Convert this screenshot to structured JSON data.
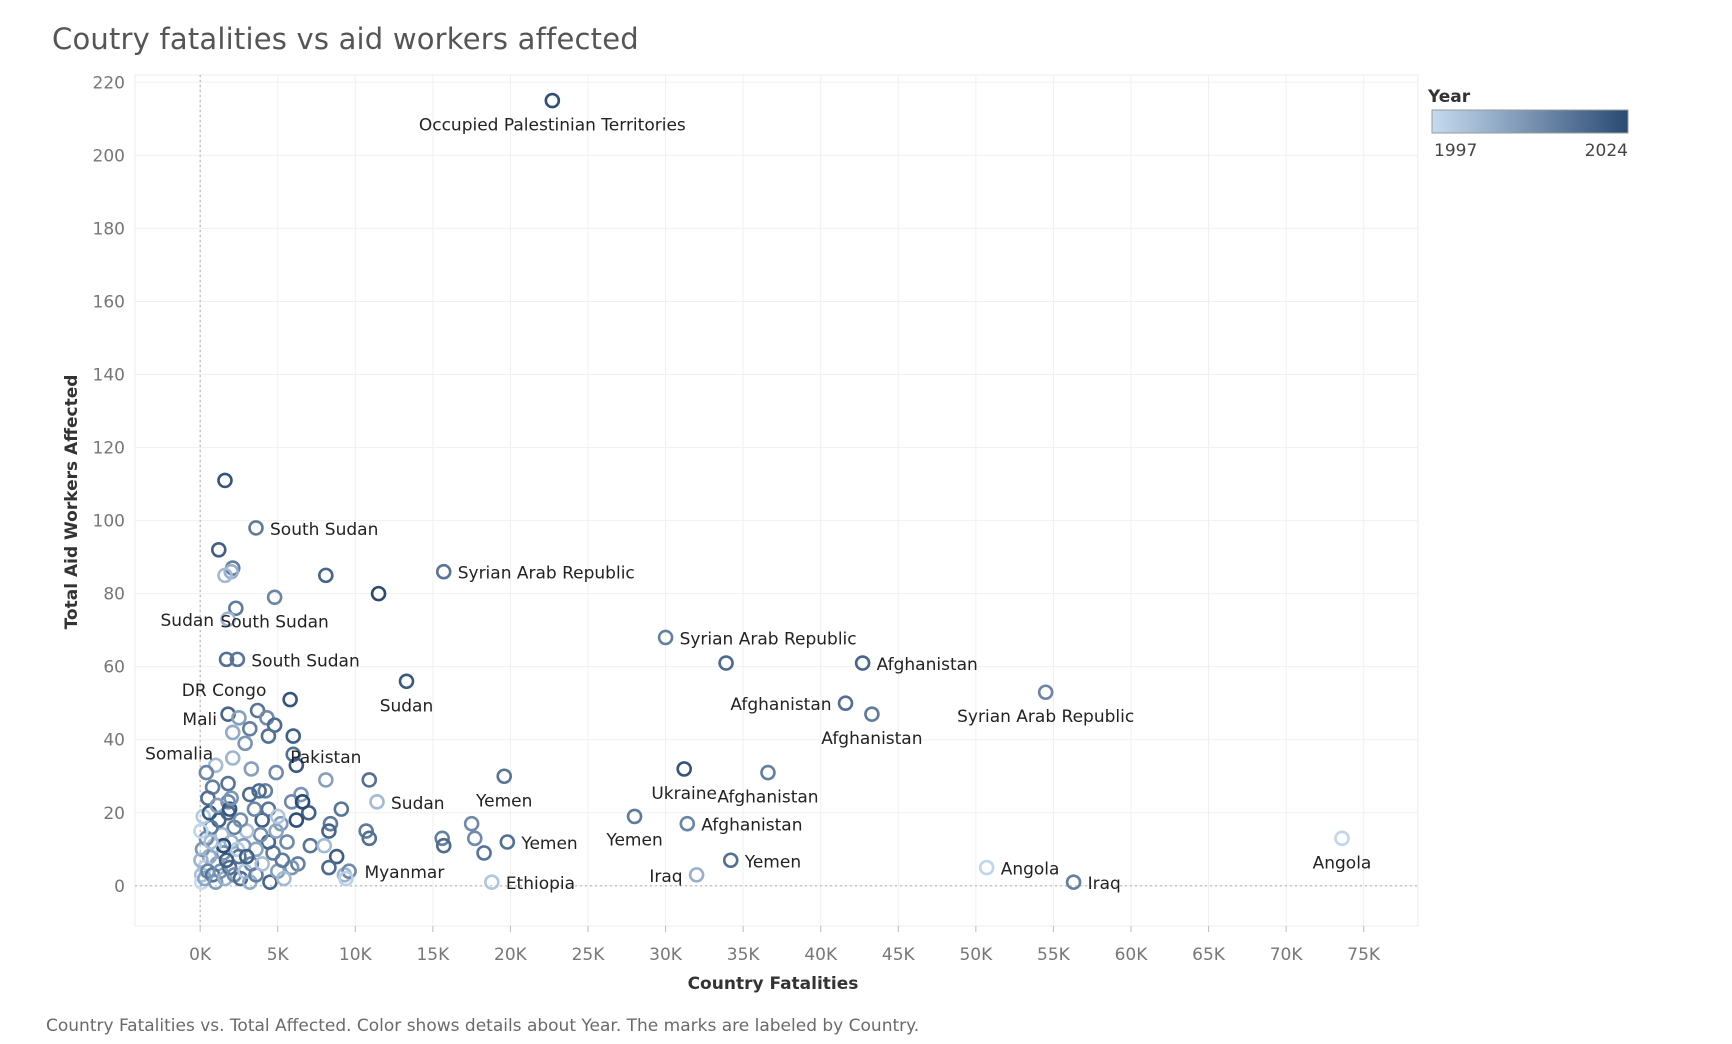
{
  "title": "Coutry fatalities vs aid workers affected",
  "caption": "Country Fatalities vs. Total Affected.  Color shows details about Year.  The marks are labeled by Country.",
  "legend": {
    "title": "Year",
    "min_label": "1997",
    "max_label": "2024",
    "color_low": "#c6dbef",
    "color_high": "#2a4a73"
  },
  "chart_data": {
    "type": "scatter",
    "title": "Coutry fatalities vs aid workers affected",
    "xlabel": "Country Fatalities",
    "ylabel": "Total Aid Workers Affected",
    "xlim": [
      -4200,
      78500
    ],
    "ylim": [
      -11,
      222
    ],
    "xticks": [
      0,
      5000,
      10000,
      15000,
      20000,
      25000,
      30000,
      35000,
      40000,
      45000,
      50000,
      55000,
      60000,
      65000,
      70000,
      75000
    ],
    "xtick_labels": [
      "0K",
      "5K",
      "10K",
      "15K",
      "20K",
      "25K",
      "30K",
      "35K",
      "40K",
      "45K",
      "50K",
      "55K",
      "60K",
      "65K",
      "70K",
      "75K"
    ],
    "yticks": [
      0,
      20,
      40,
      60,
      80,
      100,
      120,
      140,
      160,
      180,
      200,
      220
    ],
    "ytick_labels": [
      "0",
      "20",
      "40",
      "60",
      "80",
      "100",
      "120",
      "140",
      "160",
      "180",
      "200",
      "220"
    ],
    "grid": true,
    "legend_position": "top-right",
    "color_by": "Year",
    "points": [
      {
        "x": 22700,
        "y": 215,
        "year": 2023,
        "label": "Occupied Palestinian Territories"
      },
      {
        "x": 1600,
        "y": 111,
        "year": 2022,
        "label": ""
      },
      {
        "x": 3600,
        "y": 98,
        "year": 2015,
        "label": "South Sudan"
      },
      {
        "x": 1200,
        "y": 92,
        "year": 2020,
        "label": ""
      },
      {
        "x": 2100,
        "y": 87,
        "year": 2014,
        "label": ""
      },
      {
        "x": 2000,
        "y": 86,
        "year": 2005,
        "label": ""
      },
      {
        "x": 1600,
        "y": 85,
        "year": 2003,
        "label": ""
      },
      {
        "x": 8100,
        "y": 85,
        "year": 2019,
        "label": ""
      },
      {
        "x": 15700,
        "y": 86,
        "year": 2016,
        "label": "Syrian Arab Republic"
      },
      {
        "x": 11500,
        "y": 80,
        "year": 2024,
        "label": ""
      },
      {
        "x": 4800,
        "y": 79,
        "year": 2013,
        "label": "South Sudan"
      },
      {
        "x": 2300,
        "y": 76,
        "year": 2015,
        "label": ""
      },
      {
        "x": 1800,
        "y": 73,
        "year": 2004,
        "label": "Sudan"
      },
      {
        "x": 30000,
        "y": 68,
        "year": 2014,
        "label": "Syrian Arab Republic"
      },
      {
        "x": 1700,
        "y": 62,
        "year": 2017,
        "label": ""
      },
      {
        "x": 2400,
        "y": 62,
        "year": 2016,
        "label": "South Sudan"
      },
      {
        "x": 33900,
        "y": 61,
        "year": 2018,
        "label": ""
      },
      {
        "x": 42700,
        "y": 61,
        "year": 2019,
        "label": "Afghanistan"
      },
      {
        "x": 13300,
        "y": 56,
        "year": 2021,
        "label": "Sudan"
      },
      {
        "x": 54500,
        "y": 53,
        "year": 2013,
        "label": "Syrian Arab Republic"
      },
      {
        "x": 5800,
        "y": 51,
        "year": 2022,
        "label": ""
      },
      {
        "x": 41600,
        "y": 50,
        "year": 2017,
        "label": "Afghanistan"
      },
      {
        "x": 43300,
        "y": 47,
        "year": 2015,
        "label": "Afghanistan"
      },
      {
        "x": 1800,
        "y": 47,
        "year": 2019,
        "label": "DR Congo"
      },
      {
        "x": 2500,
        "y": 46,
        "year": 2008,
        "label": "Mali"
      },
      {
        "x": 3700,
        "y": 48,
        "year": 2016,
        "label": ""
      },
      {
        "x": 4300,
        "y": 46,
        "year": 2012,
        "label": ""
      },
      {
        "x": 4800,
        "y": 44,
        "year": 2018,
        "label": ""
      },
      {
        "x": 2100,
        "y": 42,
        "year": 2006,
        "label": ""
      },
      {
        "x": 3200,
        "y": 43,
        "year": 2014,
        "label": ""
      },
      {
        "x": 4400,
        "y": 41,
        "year": 2017,
        "label": ""
      },
      {
        "x": 6000,
        "y": 41,
        "year": 2020,
        "label": ""
      },
      {
        "x": 2900,
        "y": 39,
        "year": 2010,
        "label": "Somalia"
      },
      {
        "x": 6000,
        "y": 36,
        "year": 2017,
        "label": ""
      },
      {
        "x": 2100,
        "y": 35,
        "year": 2004,
        "label": ""
      },
      {
        "x": 1000,
        "y": 33,
        "year": 2003,
        "label": ""
      },
      {
        "x": 3300,
        "y": 32,
        "year": 2008,
        "label": ""
      },
      {
        "x": 6200,
        "y": 33,
        "year": 2021,
        "label": ""
      },
      {
        "x": 400,
        "y": 31,
        "year": 2013,
        "label": ""
      },
      {
        "x": 4900,
        "y": 31,
        "year": 2012,
        "label": ""
      },
      {
        "x": 8100,
        "y": 29,
        "year": 2008,
        "label": "Pakistan"
      },
      {
        "x": 10900,
        "y": 29,
        "year": 2017,
        "label": ""
      },
      {
        "x": 19600,
        "y": 30,
        "year": 2016,
        "label": "Yemen"
      },
      {
        "x": 31200,
        "y": 32,
        "year": 2022,
        "label": "Ukraine"
      },
      {
        "x": 36600,
        "y": 31,
        "year": 2014,
        "label": "Afghanistan"
      },
      {
        "x": 800,
        "y": 27,
        "year": 2014,
        "label": ""
      },
      {
        "x": 1800,
        "y": 28,
        "year": 2016,
        "label": ""
      },
      {
        "x": 3200,
        "y": 25,
        "year": 2018,
        "label": ""
      },
      {
        "x": 4200,
        "y": 26,
        "year": 2014,
        "label": ""
      },
      {
        "x": 6500,
        "y": 25,
        "year": 2010,
        "label": ""
      },
      {
        "x": 11400,
        "y": 23,
        "year": 2003,
        "label": "Sudan"
      },
      {
        "x": 9100,
        "y": 21,
        "year": 2016,
        "label": ""
      },
      {
        "x": 500,
        "y": 24,
        "year": 2017,
        "label": ""
      },
      {
        "x": 1800,
        "y": 23,
        "year": 2012,
        "label": ""
      },
      {
        "x": 5900,
        "y": 23,
        "year": 2012,
        "label": ""
      },
      {
        "x": 7000,
        "y": 20,
        "year": 2020,
        "label": ""
      },
      {
        "x": 28000,
        "y": 19,
        "year": 2015,
        "label": "Yemen"
      },
      {
        "x": 31400,
        "y": 17,
        "year": 2013,
        "label": "Afghanistan"
      },
      {
        "x": 17500,
        "y": 17,
        "year": 2012,
        "label": ""
      },
      {
        "x": 8400,
        "y": 17,
        "year": 2015,
        "label": ""
      },
      {
        "x": 10700,
        "y": 15,
        "year": 2015,
        "label": ""
      },
      {
        "x": 8300,
        "y": 15,
        "year": 2019,
        "label": ""
      },
      {
        "x": 10900,
        "y": 13,
        "year": 2017,
        "label": ""
      },
      {
        "x": 15600,
        "y": 13,
        "year": 2014,
        "label": ""
      },
      {
        "x": 17700,
        "y": 13,
        "year": 2012,
        "label": ""
      },
      {
        "x": 15700,
        "y": 11,
        "year": 2018,
        "label": ""
      },
      {
        "x": 19800,
        "y": 12,
        "year": 2017,
        "label": "Yemen"
      },
      {
        "x": 18300,
        "y": 9,
        "year": 2016,
        "label": ""
      },
      {
        "x": 73600,
        "y": 13,
        "year": 1998,
        "label": "Angola"
      },
      {
        "x": 34200,
        "y": 7,
        "year": 2017,
        "label": "Yemen"
      },
      {
        "x": 32000,
        "y": 3,
        "year": 2005,
        "label": "Iraq"
      },
      {
        "x": 50700,
        "y": 5,
        "year": 1998,
        "label": "Angola"
      },
      {
        "x": 56300,
        "y": 1,
        "year": 2014,
        "label": "Iraq"
      },
      {
        "x": 18800,
        "y": 1,
        "year": 2001,
        "label": "Ethiopia"
      },
      {
        "x": 9300,
        "y": 3,
        "year": 2004,
        "label": "Myanmar"
      },
      {
        "x": 9600,
        "y": 4,
        "year": 2012,
        "label": ""
      },
      {
        "x": 8800,
        "y": 8,
        "year": 2020,
        "label": ""
      },
      {
        "x": 8300,
        "y": 5,
        "year": 2018,
        "label": ""
      },
      {
        "x": 7100,
        "y": 11,
        "year": 2016,
        "label": ""
      },
      {
        "x": 8000,
        "y": 11,
        "year": 2003,
        "label": ""
      },
      {
        "x": 6300,
        "y": 6,
        "year": 2014,
        "label": ""
      },
      {
        "x": 5900,
        "y": 5,
        "year": 2010,
        "label": ""
      },
      {
        "x": 5600,
        "y": 12,
        "year": 2012,
        "label": ""
      },
      {
        "x": 5200,
        "y": 17,
        "year": 2009,
        "label": ""
      },
      {
        "x": 4700,
        "y": 9,
        "year": 2015,
        "label": ""
      },
      {
        "x": 4400,
        "y": 12,
        "year": 2019,
        "label": ""
      },
      {
        "x": 4000,
        "y": 18,
        "year": 2020,
        "label": ""
      },
      {
        "x": 3900,
        "y": 14,
        "year": 2011,
        "label": ""
      },
      {
        "x": 3600,
        "y": 10,
        "year": 2007,
        "label": ""
      },
      {
        "x": 3300,
        "y": 6,
        "year": 2013,
        "label": ""
      },
      {
        "x": 3000,
        "y": 15,
        "year": 2002,
        "label": ""
      },
      {
        "x": 2800,
        "y": 11,
        "year": 2009,
        "label": ""
      },
      {
        "x": 2500,
        "y": 8,
        "year": 2016,
        "label": ""
      },
      {
        "x": 2200,
        "y": 16,
        "year": 2014,
        "label": ""
      },
      {
        "x": 2000,
        "y": 12,
        "year": 2005,
        "label": ""
      },
      {
        "x": 1800,
        "y": 20,
        "year": 2018,
        "label": ""
      },
      {
        "x": 1500,
        "y": 9,
        "year": 2011,
        "label": ""
      },
      {
        "x": 1400,
        "y": 14,
        "year": 2003,
        "label": ""
      },
      {
        "x": 1200,
        "y": 18,
        "year": 2019,
        "label": ""
      },
      {
        "x": 1100,
        "y": 6,
        "year": 2008,
        "label": ""
      },
      {
        "x": 900,
        "y": 11,
        "year": 2001,
        "label": ""
      },
      {
        "x": 700,
        "y": 16,
        "year": 2015,
        "label": ""
      },
      {
        "x": 600,
        "y": 8,
        "year": 2006,
        "label": ""
      },
      {
        "x": 400,
        "y": 13,
        "year": 2012,
        "label": ""
      },
      {
        "x": 300,
        "y": 5,
        "year": 1999,
        "label": ""
      },
      {
        "x": 200,
        "y": 19,
        "year": 2000,
        "label": ""
      },
      {
        "x": 150,
        "y": 10,
        "year": 2010,
        "label": ""
      },
      {
        "x": 100,
        "y": 3,
        "year": 2002,
        "label": ""
      },
      {
        "x": 50,
        "y": 15,
        "year": 1998,
        "label": ""
      },
      {
        "x": 50,
        "y": 7,
        "year": 2004,
        "label": ""
      },
      {
        "x": 100,
        "y": 1,
        "year": 1997,
        "label": ""
      },
      {
        "x": 300,
        "y": 2,
        "year": 2007,
        "label": ""
      },
      {
        "x": 500,
        "y": 4,
        "year": 2013,
        "label": ""
      },
      {
        "x": 800,
        "y": 3,
        "year": 2016,
        "label": ""
      },
      {
        "x": 1000,
        "y": 1,
        "year": 2009,
        "label": ""
      },
      {
        "x": 1300,
        "y": 4,
        "year": 2011,
        "label": ""
      },
      {
        "x": 1600,
        "y": 2,
        "year": 2005,
        "label": ""
      },
      {
        "x": 1900,
        "y": 5,
        "year": 2017,
        "label": ""
      },
      {
        "x": 2200,
        "y": 3,
        "year": 2012,
        "label": ""
      },
      {
        "x": 2600,
        "y": 2,
        "year": 2018,
        "label": ""
      },
      {
        "x": 2900,
        "y": 4,
        "year": 2001,
        "label": ""
      },
      {
        "x": 3200,
        "y": 1,
        "year": 2006,
        "label": ""
      },
      {
        "x": 3600,
        "y": 3,
        "year": 2014,
        "label": ""
      },
      {
        "x": 4000,
        "y": 6,
        "year": 2002,
        "label": ""
      },
      {
        "x": 4500,
        "y": 1,
        "year": 2019,
        "label": ""
      },
      {
        "x": 5000,
        "y": 4,
        "year": 2008,
        "label": ""
      },
      {
        "x": 5400,
        "y": 2,
        "year": 2003,
        "label": ""
      },
      {
        "x": 9400,
        "y": 2,
        "year": 1999,
        "label": ""
      },
      {
        "x": 1700,
        "y": 7,
        "year": 2020,
        "label": ""
      },
      {
        "x": 2400,
        "y": 10,
        "year": 2000,
        "label": ""
      },
      {
        "x": 600,
        "y": 20,
        "year": 2021,
        "label": ""
      },
      {
        "x": 1100,
        "y": 22,
        "year": 2009,
        "label": ""
      },
      {
        "x": 1900,
        "y": 21,
        "year": 2022,
        "label": ""
      },
      {
        "x": 2600,
        "y": 18,
        "year": 2011,
        "label": ""
      },
      {
        "x": 3500,
        "y": 21,
        "year": 2013,
        "label": ""
      },
      {
        "x": 4400,
        "y": 21,
        "year": 2016,
        "label": ""
      },
      {
        "x": 4900,
        "y": 15,
        "year": 2007,
        "label": ""
      },
      {
        "x": 6200,
        "y": 18,
        "year": 2023,
        "label": ""
      },
      {
        "x": 5300,
        "y": 7,
        "year": 2015,
        "label": ""
      },
      {
        "x": 3000,
        "y": 8,
        "year": 2020,
        "label": ""
      },
      {
        "x": 1500,
        "y": 11,
        "year": 2024,
        "label": ""
      },
      {
        "x": 700,
        "y": 12,
        "year": 2002,
        "label": ""
      },
      {
        "x": 2000,
        "y": 24,
        "year": 2010,
        "label": ""
      },
      {
        "x": 3800,
        "y": 26,
        "year": 2018,
        "label": ""
      },
      {
        "x": 5000,
        "y": 19,
        "year": 2001,
        "label": ""
      },
      {
        "x": 6600,
        "y": 23,
        "year": 2024,
        "label": ""
      }
    ]
  }
}
